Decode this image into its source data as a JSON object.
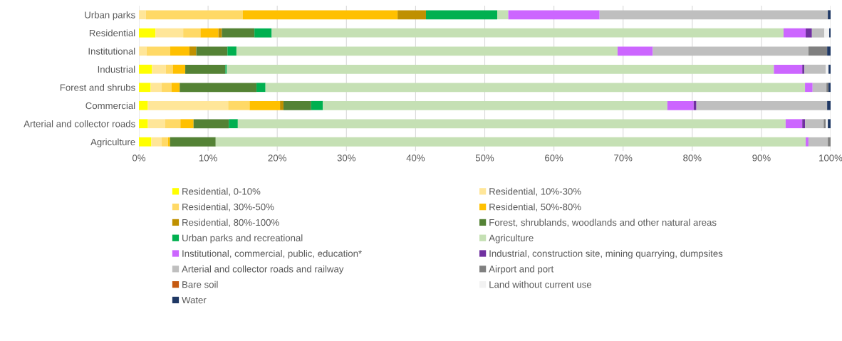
{
  "chart_data": {
    "type": "bar",
    "orientation": "horizontal",
    "stacked": true,
    "categories": [
      "Urban parks",
      "Residential",
      "Institutional",
      "Industrial",
      "Forest and shrubs",
      "Commercial",
      "Arterial and collector roads",
      "Agriculture"
    ],
    "xlim": [
      0,
      100
    ],
    "xticks": [
      {
        "value": 0,
        "label": "0%"
      },
      {
        "value": 10,
        "label": "10%"
      },
      {
        "value": 20,
        "label": "20%"
      },
      {
        "value": 30,
        "label": "30%"
      },
      {
        "value": 40,
        "label": "40%"
      },
      {
        "value": 50,
        "label": "50%"
      },
      {
        "value": 60,
        "label": "60%"
      },
      {
        "value": 70,
        "label": "70%"
      },
      {
        "value": 80,
        "label": "80%"
      },
      {
        "value": 90,
        "label": "90%"
      },
      {
        "value": 100,
        "label": "100%"
      }
    ],
    "grid": "x",
    "legend": "bottom",
    "series": [
      {
        "name": "Residential, 0-10%",
        "color": "#ffff00",
        "values": [
          0,
          2.4,
          0,
          1.9,
          1.7,
          1.3,
          1.3,
          1.8
        ]
      },
      {
        "name": "Residential, 10%-30%",
        "color": "#ffe699",
        "values": [
          1.0,
          4.0,
          1.1,
          2.0,
          1.6,
          11.6,
          2.5,
          1.5
        ]
      },
      {
        "name": "Residential, 30%-50%",
        "color": "#ffd966",
        "values": [
          14.0,
          2.5,
          3.4,
          1.0,
          1.4,
          3.1,
          2.2,
          0.9
        ]
      },
      {
        "name": "Residential, 50%-80%",
        "color": "#ffc000",
        "values": [
          22.4,
          2.6,
          2.8,
          1.8,
          1.2,
          4.4,
          1.9,
          0.3
        ]
      },
      {
        "name": "Residential, 80%-100%",
        "color": "#bf9000",
        "values": [
          4.1,
          0.5,
          1.0,
          0,
          0,
          0.5,
          0,
          0
        ]
      },
      {
        "name": "Forest, shrublands, woodlands and other natural areas",
        "color": "#548235",
        "values": [
          0,
          4.7,
          4.5,
          5.8,
          11.1,
          4.0,
          5.1,
          6.6
        ]
      },
      {
        "name": "Urban parks and recreational",
        "color": "#00b050",
        "values": [
          10.3,
          2.5,
          1.3,
          0.2,
          1.3,
          1.7,
          1.3,
          0
        ]
      },
      {
        "name": "Agriculture",
        "color": "#c5e0b4",
        "values": [
          1.6,
          74.0,
          55.1,
          79.1,
          78.0,
          49.8,
          79.2,
          85.3
        ]
      },
      {
        "name": "Institutional, commercial, public, education*",
        "color": "#cc66ff",
        "values": [
          13.2,
          3.2,
          5.1,
          4.1,
          1.1,
          3.8,
          2.4,
          0.4
        ]
      },
      {
        "name": "Industrial, construction site, mining quarrying, dumpsites",
        "color": "#7030a0",
        "values": [
          0,
          0.9,
          0,
          0.3,
          0,
          0.4,
          0.4,
          0
        ]
      },
      {
        "name": "Arterial and collector roads and railway",
        "color": "#bfbfbf",
        "values": [
          33.0,
          1.8,
          22.5,
          3.1,
          2.0,
          18.9,
          2.7,
          2.8
        ]
      },
      {
        "name": "Airport and port",
        "color": "#808080",
        "values": [
          0,
          0,
          2.7,
          0,
          0.3,
          0,
          0.3,
          0.4
        ]
      },
      {
        "name": "Bare soil",
        "color": "#c55a11",
        "values": [
          0,
          0,
          0,
          0,
          0,
          0,
          0,
          0
        ]
      },
      {
        "name": "Land without current use",
        "color": "#f2f2f2",
        "values": [
          0,
          0.7,
          0,
          0.4,
          0,
          0,
          0.3,
          0
        ]
      },
      {
        "name": "Water",
        "color": "#1f3864",
        "values": [
          0.4,
          0.2,
          0.5,
          0.3,
          0.3,
          0.5,
          0.4,
          0
        ]
      }
    ]
  }
}
